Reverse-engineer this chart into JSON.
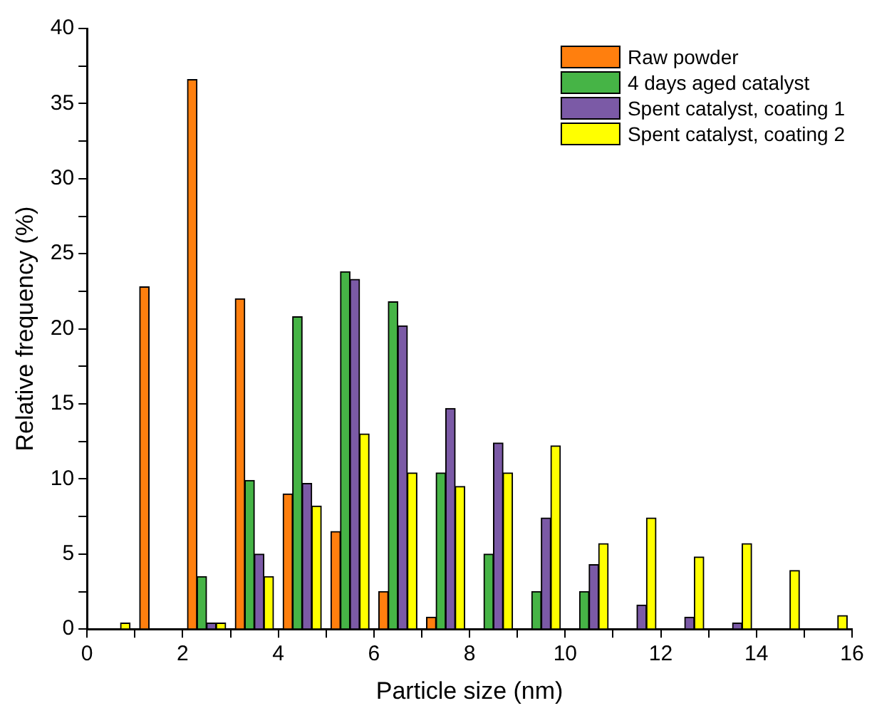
{
  "chart_data": {
    "type": "bar",
    "xlabel": "Particle size (nm)",
    "ylabel": "Relative frequency (%)",
    "series": [
      {
        "name": "Raw powder",
        "color": "#ff7f0e",
        "x": [
          1.2,
          2.2,
          3.2,
          4.2,
          5.2,
          6.2,
          7.2
        ],
        "values": [
          22.8,
          36.6,
          22.0,
          9.0,
          6.5,
          2.5,
          0.8
        ]
      },
      {
        "name": "4 days aged catalyst",
        "color": "#46b446",
        "x": [
          2.4,
          3.4,
          4.4,
          5.4,
          6.4,
          7.4,
          8.4,
          9.4,
          10.4
        ],
        "values": [
          3.5,
          9.9,
          20.8,
          23.8,
          21.8,
          10.4,
          5.0,
          2.5,
          2.5
        ]
      },
      {
        "name": "Spent catalyst, coating 1",
        "color": "#7b5aa6",
        "x": [
          2.6,
          3.6,
          4.6,
          5.6,
          6.6,
          7.6,
          8.6,
          9.6,
          10.6,
          11.6,
          12.6,
          13.6
        ],
        "values": [
          0.4,
          5.0,
          9.7,
          23.3,
          20.2,
          14.7,
          12.4,
          7.4,
          4.3,
          1.6,
          0.8,
          0.4
        ]
      },
      {
        "name": "Spent catalyst, coating 2",
        "color": "#ffff00",
        "x": [
          0.8,
          2.8,
          3.8,
          4.8,
          5.8,
          6.8,
          7.8,
          8.8,
          9.8,
          10.8,
          11.8,
          12.8,
          13.8,
          14.8,
          15.8
        ],
        "values": [
          0.4,
          0.4,
          3.5,
          8.2,
          13.0,
          10.4,
          9.5,
          10.4,
          12.2,
          5.7,
          7.4,
          4.8,
          5.7,
          3.9,
          0.9
        ]
      }
    ],
    "xlim": [
      0,
      16
    ],
    "xticks": [
      0,
      {
        "value": 1,
        "label": null
      },
      2,
      {
        "value": 3,
        "label": null
      },
      4,
      {
        "value": 5,
        "label": null
      },
      6,
      {
        "value": 7,
        "label": null
      },
      8,
      {
        "value": 9,
        "label": null
      },
      10,
      {
        "value": 11,
        "label": null
      },
      12,
      {
        "value": 13,
        "label": null
      },
      14,
      {
        "value": 15,
        "label": null
      },
      16
    ],
    "ylim": [
      0,
      40
    ],
    "yticks": [
      0,
      {
        "value": 2.5,
        "label": null
      },
      5,
      {
        "value": 7.5,
        "label": null
      },
      10,
      {
        "value": 12.5,
        "label": null
      },
      15,
      {
        "value": 17.5,
        "label": null
      },
      20,
      {
        "value": 22.5,
        "label": null
      },
      25,
      {
        "value": 27.5,
        "label": null
      },
      30,
      {
        "value": 32.5,
        "label": null
      },
      35,
      {
        "value": 37.5,
        "label": null
      },
      40
    ],
    "grid": false,
    "legend": "top right"
  }
}
